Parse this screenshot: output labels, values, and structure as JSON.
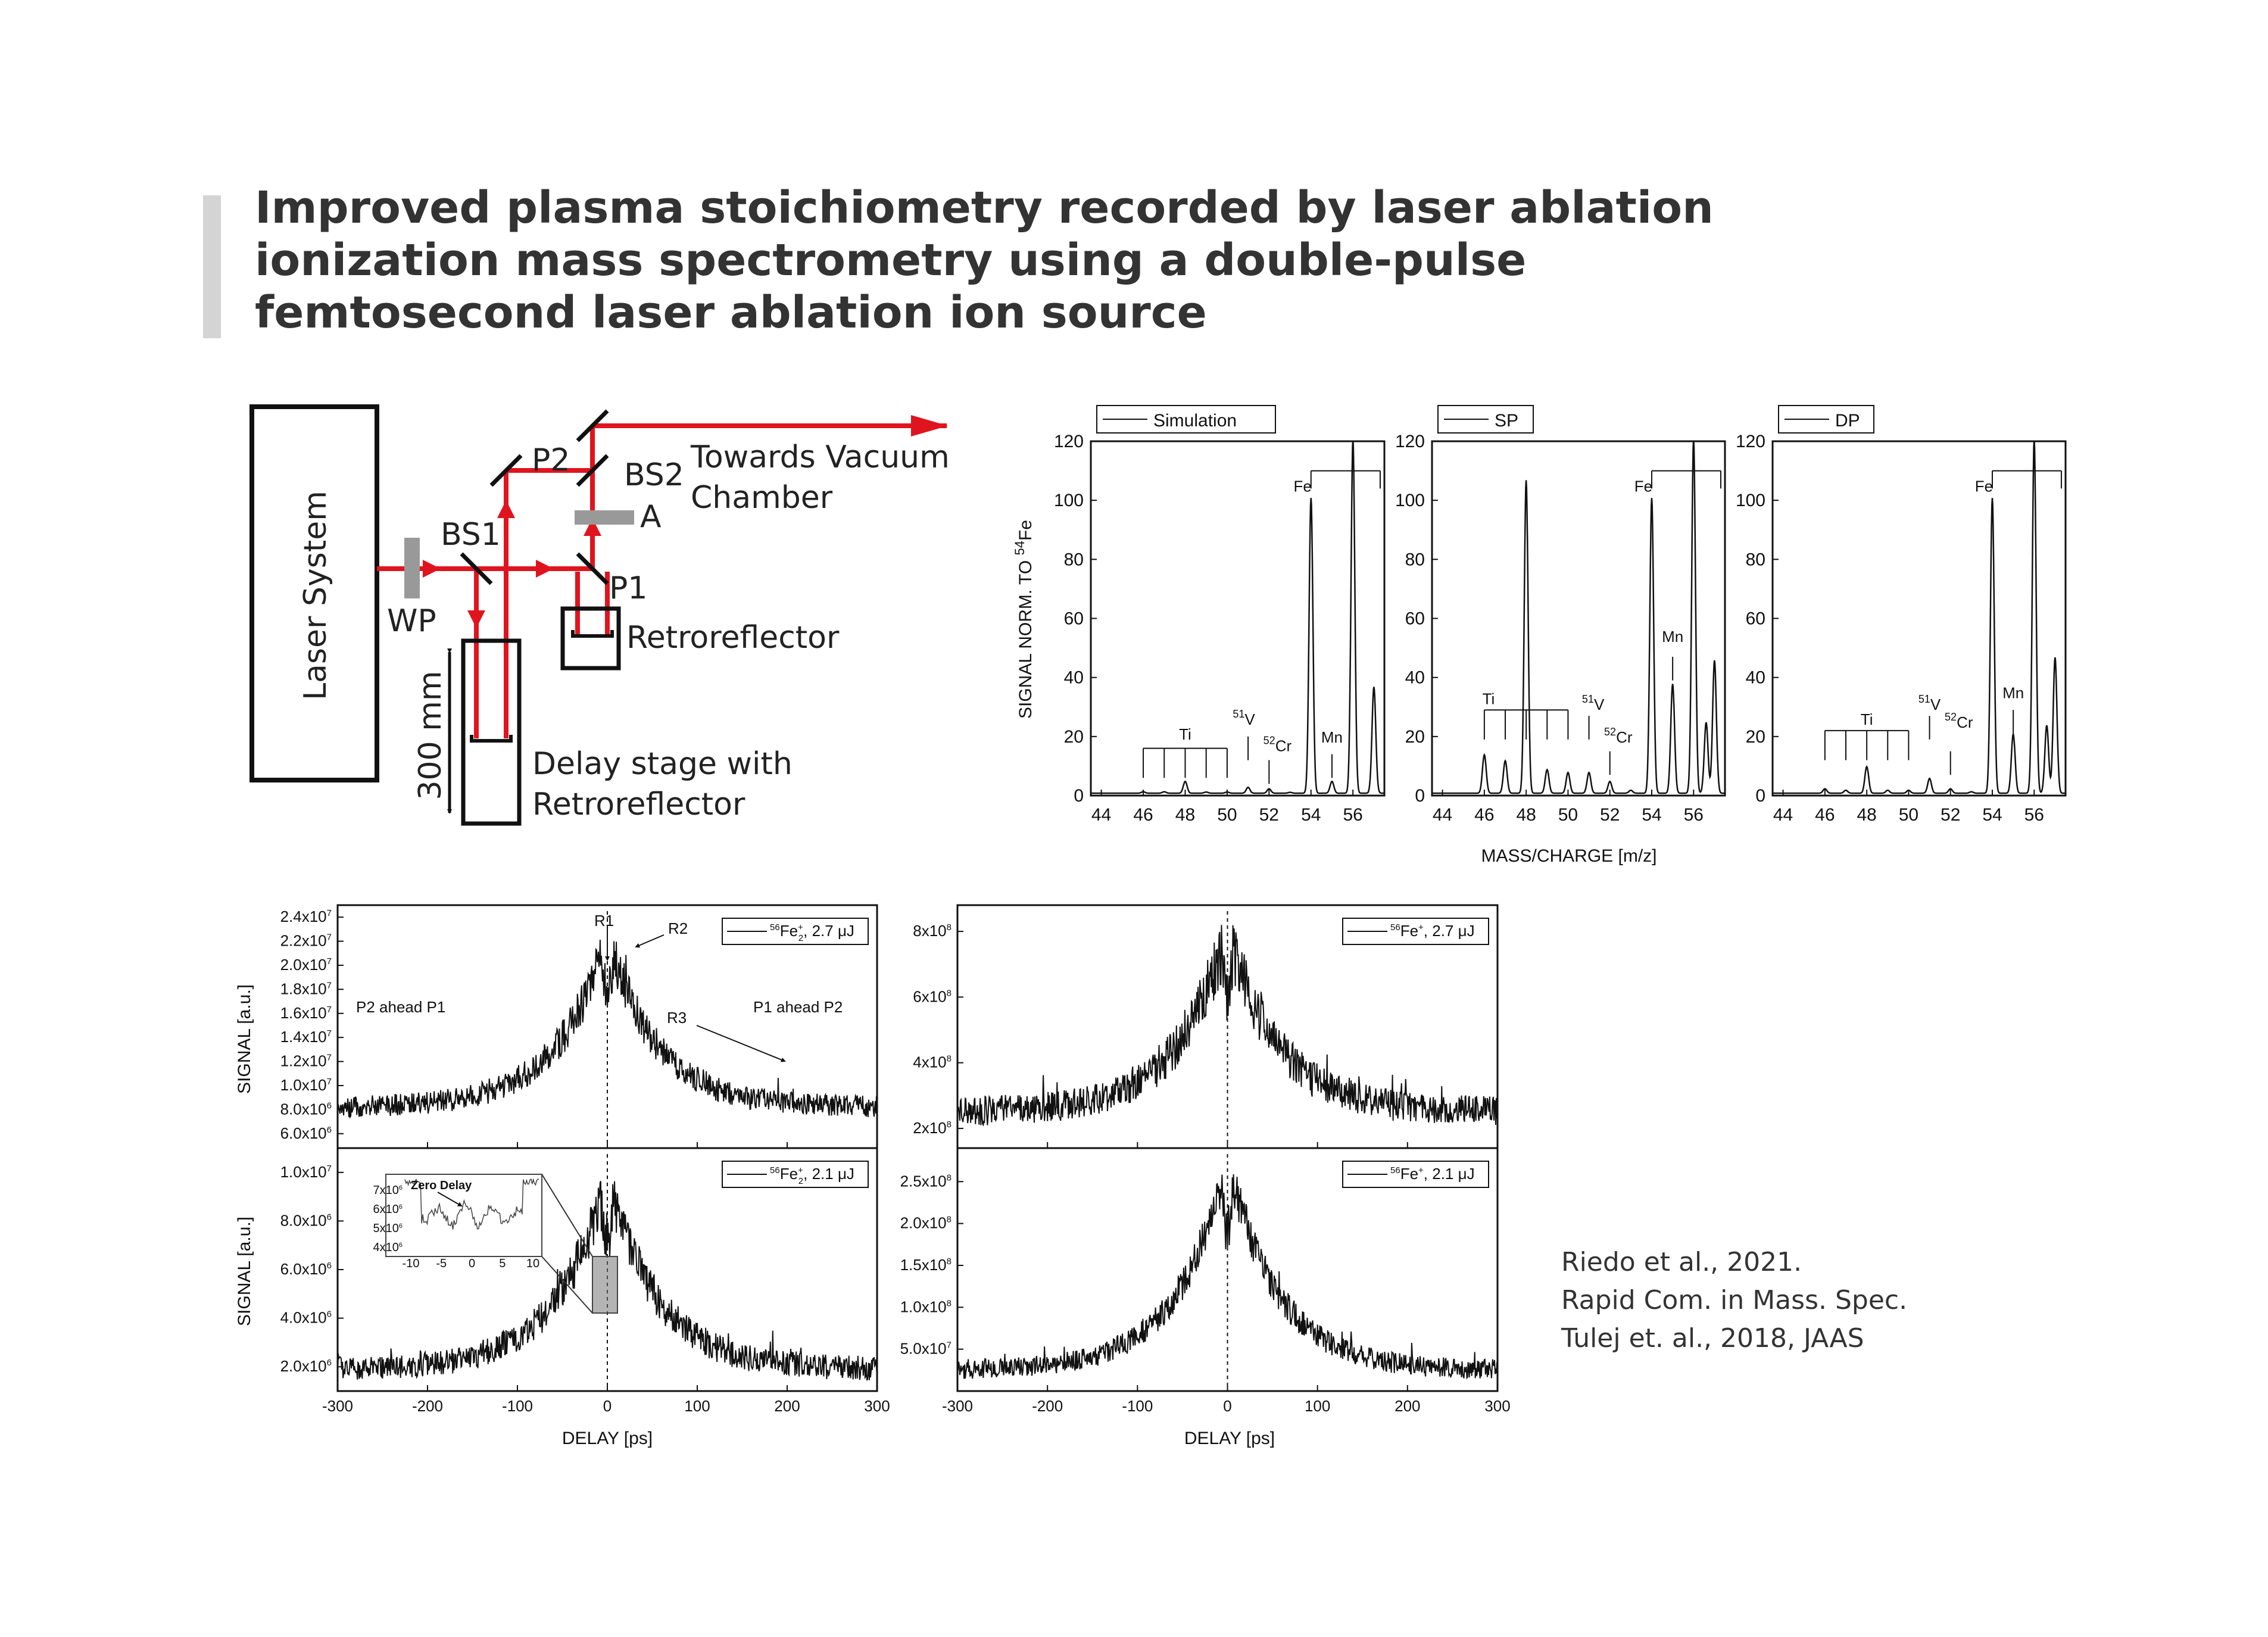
{
  "title": {
    "lines": [
      "Improved plasma stoichiometry recorded by laser ablation",
      "ionization mass spectrometry using a double-pulse",
      "femtosecond laser ablation ion source"
    ]
  },
  "setup": {
    "laser_system": "Laser System",
    "wp": "WP",
    "bs1": "BS1",
    "bs2": "BS2",
    "p1": "P1",
    "p2": "P2",
    "a": "A",
    "towards_line1": "Towards Vacuum",
    "towards_line2": "Chamber",
    "retroreflector": "Retroreflector",
    "delay_line1": "Delay stage with",
    "delay_line2": "Retroreflector",
    "distance": "300 mm",
    "beam_color": "#e0141e"
  },
  "mass_spectra": {
    "ylabel": "SIGNAL NORM. TO ",
    "ylabel_sup": "54",
    "ylabel_element": "Fe",
    "xlabel": "MASS/CHARGE [m/z]"
  },
  "delay_scans": {
    "ylabel": "SIGNAL [a.u.]",
    "xlabel": "DELAY [ps]",
    "annotations": {
      "r1": "R1",
      "r2": "R2",
      "r3": "R3",
      "p2_ahead": "P2 ahead P1",
      "p1_ahead": "P1 ahead P2",
      "zero_delay": "Zero Delay"
    }
  },
  "citation": {
    "lines": [
      "Riedo et al., 2021.",
      "Rapid Com. in Mass. Spec.",
      "Tulej et. al., 2018, JAAS"
    ]
  },
  "chart_data": [
    {
      "type": "line",
      "legend": "Simulation",
      "xlim": [
        43.5,
        57.5
      ],
      "ylim": [
        0,
        120
      ],
      "xticks": [
        "44",
        "46",
        "48",
        "50",
        "52",
        "54",
        "56"
      ],
      "yticks": [
        "0",
        "20",
        "40",
        "60",
        "80",
        "100",
        "120"
      ],
      "peaks": [
        {
          "x": 46,
          "y": 0.5
        },
        {
          "x": 47,
          "y": 0.5
        },
        {
          "x": 48,
          "y": 4
        },
        {
          "x": 49,
          "y": 0.4
        },
        {
          "x": 50,
          "y": 0.4
        },
        {
          "x": 51,
          "y": 2
        },
        {
          "x": 52,
          "y": 1.5
        },
        {
          "x": 53,
          "y": 0.3
        },
        {
          "x": 54,
          "y": 100
        },
        {
          "x": 55,
          "y": 4
        },
        {
          "x": 56,
          "y": 120
        },
        {
          "x": 57,
          "y": 36
        }
      ],
      "labels": [
        {
          "text": "Ti",
          "x": 48,
          "y": 19
        },
        {
          "text": "V",
          "sup": "51",
          "x": 50.8,
          "y": 24
        },
        {
          "text": "Cr",
          "sup": "52",
          "x": 52.4,
          "y": 15
        },
        {
          "text": "Mn",
          "x": 55,
          "y": 18
        },
        {
          "text": "Fe",
          "x": 53.6,
          "y": 103
        }
      ]
    },
    {
      "type": "line",
      "legend": "SP",
      "xlim": [
        43.5,
        57.5
      ],
      "ylim": [
        0,
        120
      ],
      "xticks": [
        "44",
        "46",
        "48",
        "50",
        "52",
        "54",
        "56"
      ],
      "yticks": [
        "0",
        "20",
        "40",
        "60",
        "80",
        "100",
        "120"
      ],
      "peaks": [
        {
          "x": 46,
          "y": 13
        },
        {
          "x": 47,
          "y": 11
        },
        {
          "x": 48,
          "y": 106
        },
        {
          "x": 49,
          "y": 8
        },
        {
          "x": 50,
          "y": 7
        },
        {
          "x": 51,
          "y": 7
        },
        {
          "x": 52,
          "y": 4
        },
        {
          "x": 53,
          "y": 1
        },
        {
          "x": 54,
          "y": 100
        },
        {
          "x": 55,
          "y": 37
        },
        {
          "x": 56,
          "y": 120
        },
        {
          "x": 56.6,
          "y": 24
        },
        {
          "x": 57,
          "y": 45
        }
      ],
      "labels": [
        {
          "text": "Ti",
          "x": 46.2,
          "y": 31
        },
        {
          "text": "V",
          "sup": "51",
          "x": 51.2,
          "y": 29
        },
        {
          "text": "Cr",
          "sup": "52",
          "x": 52.4,
          "y": 18
        },
        {
          "text": "Mn",
          "x": 55,
          "y": 52
        },
        {
          "text": "Fe",
          "x": 53.6,
          "y": 103
        }
      ]
    },
    {
      "type": "line",
      "legend": "DP",
      "xlim": [
        43.5,
        57.5
      ],
      "ylim": [
        0,
        120
      ],
      "xticks": [
        "44",
        "46",
        "48",
        "50",
        "52",
        "54",
        "56"
      ],
      "yticks": [
        "0",
        "20",
        "40",
        "60",
        "80",
        "100",
        "120"
      ],
      "peaks": [
        {
          "x": 46,
          "y": 1.5
        },
        {
          "x": 47,
          "y": 1
        },
        {
          "x": 48,
          "y": 9
        },
        {
          "x": 49,
          "y": 1
        },
        {
          "x": 50,
          "y": 1
        },
        {
          "x": 51,
          "y": 5
        },
        {
          "x": 52,
          "y": 1.5
        },
        {
          "x": 53,
          "y": 0.5
        },
        {
          "x": 54,
          "y": 100
        },
        {
          "x": 55,
          "y": 20
        },
        {
          "x": 56,
          "y": 120
        },
        {
          "x": 56.6,
          "y": 23
        },
        {
          "x": 57,
          "y": 46
        }
      ],
      "labels": [
        {
          "text": "Ti",
          "x": 48,
          "y": 24
        },
        {
          "text": "V",
          "sup": "51",
          "x": 51,
          "y": 29
        },
        {
          "text": "Cr",
          "sup": "52",
          "x": 52.4,
          "y": 23
        },
        {
          "text": "Mn",
          "x": 55,
          "y": 33
        },
        {
          "text": "Fe",
          "x": 53.6,
          "y": 103
        }
      ]
    },
    {
      "type": "line",
      "legend_sup": "56",
      "legend_base": "Fe",
      "legend_sub": "2",
      "legend_charge": "+",
      "legend_energy": ", 2.7 μJ",
      "xlim": [
        -300,
        300
      ],
      "ylim": [
        4800000,
        25000000
      ],
      "yticks": [
        {
          "mant": "2.4x10",
          "exp": "7",
          "v": 24000000
        },
        {
          "mant": "2.2x10",
          "exp": "7",
          "v": 22000000
        },
        {
          "mant": "2.0x10",
          "exp": "7",
          "v": 20000000
        },
        {
          "mant": "1.8x10",
          "exp": "7",
          "v": 18000000
        },
        {
          "mant": "1.6x10",
          "exp": "7",
          "v": 16000000
        },
        {
          "mant": "1.4x10",
          "exp": "7",
          "v": 14000000
        },
        {
          "mant": "1.2x10",
          "exp": "7",
          "v": 12000000
        },
        {
          "mant": "1.0x10",
          "exp": "7",
          "v": 10000000
        },
        {
          "mant": "8.0x10",
          "exp": "6",
          "v": 8000000
        },
        {
          "mant": "6.0x10",
          "exp": "6",
          "v": 6000000
        }
      ],
      "baseline": 8200000,
      "peak": 22500000,
      "noise": 900000
    },
    {
      "type": "line",
      "legend_sup": "56",
      "legend_base": "Fe",
      "legend_sub": "",
      "legend_charge": "+",
      "legend_energy": ", 2.7 μJ",
      "xlim": [
        -300,
        300
      ],
      "ylim": [
        140000000,
        880000000
      ],
      "yticks": [
        {
          "mant": "8x10",
          "exp": "8",
          "v": 800000000
        },
        {
          "mant": "6x10",
          "exp": "8",
          "v": 600000000
        },
        {
          "mant": "4x10",
          "exp": "8",
          "v": 400000000
        },
        {
          "mant": "2x10",
          "exp": "8",
          "v": 200000000
        }
      ],
      "baseline": 250000000,
      "peak": 820000000,
      "noise": 45000000
    },
    {
      "type": "line",
      "legend_sup": "56",
      "legend_base": "Fe",
      "legend_sub": "2",
      "legend_charge": "+",
      "legend_energy": ", 2.1 μJ",
      "xlim": [
        -300,
        300
      ],
      "ylim": [
        1000000,
        11000000
      ],
      "yticks": [
        {
          "mant": "1.0x10",
          "exp": "7",
          "v": 10000000
        },
        {
          "mant": "8.0x10",
          "exp": "6",
          "v": 8000000
        },
        {
          "mant": "6.0x10",
          "exp": "6",
          "v": 6000000
        },
        {
          "mant": "4.0x10",
          "exp": "6",
          "v": 4000000
        },
        {
          "mant": "2.0x10",
          "exp": "6",
          "v": 2000000
        }
      ],
      "xticks": [
        "-300",
        "-200",
        "-100",
        "0",
        "100",
        "200",
        "300"
      ],
      "baseline": 1900000,
      "peak": 10000000,
      "noise": 500000,
      "inset": {
        "xticks": [
          "-10",
          "-5",
          "0",
          "5",
          "10"
        ],
        "yticks": [
          {
            "mant": "7x10",
            "exp": "6"
          },
          {
            "mant": "6x10",
            "exp": "6"
          },
          {
            "mant": "5x10",
            "exp": "6"
          },
          {
            "mant": "4x10",
            "exp": "6"
          }
        ]
      }
    },
    {
      "type": "line",
      "legend_sup": "56",
      "legend_base": "Fe",
      "legend_sub": "",
      "legend_charge": "+",
      "legend_energy": ", 2.1 μJ",
      "xlim": [
        -300,
        300
      ],
      "ylim": [
        0,
        290000000
      ],
      "yticks": [
        {
          "mant": "2.5x10",
          "exp": "8",
          "v": 250000000
        },
        {
          "mant": "2.0x10",
          "exp": "8",
          "v": 200000000
        },
        {
          "mant": "1.5x10",
          "exp": "8",
          "v": 150000000
        },
        {
          "mant": "1.0x10",
          "exp": "8",
          "v": 100000000
        },
        {
          "mant": "5.0x10",
          "exp": "7",
          "v": 50000000
        }
      ],
      "xticks": [
        "-300",
        "-200",
        "-100",
        "0",
        "100",
        "200",
        "300"
      ],
      "baseline": 25000000,
      "peak": 280000000,
      "noise": 12000000
    }
  ]
}
